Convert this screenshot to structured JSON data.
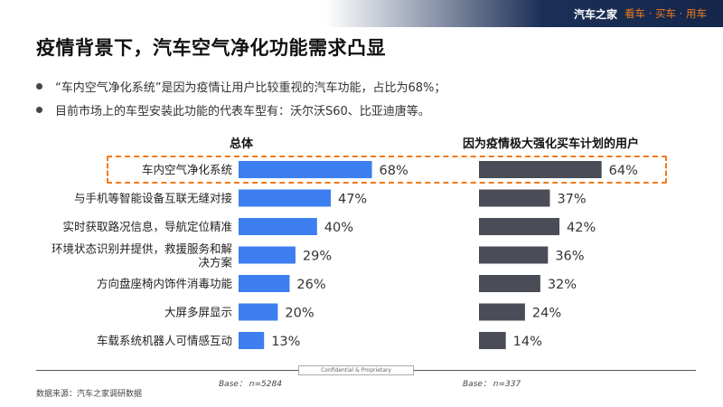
{
  "header": {
    "brand_name": "汽车之家",
    "slogan": "看车 · 买车 · 用车"
  },
  "title": "疫情背景下，汽车空气净化功能需求凸显",
  "bullets": [
    "“车内空气净化系统”是因为疫情让用户比较重视的汽车功能，占比为68%；",
    "目前市场上的车型安装此功能的代表车型有：沃尔沃S60、比亚迪唐等。"
  ],
  "colors": {
    "overall_bar": "#3d7ef0",
    "covid_bar": "#4a4d57",
    "highlight": "#f07a1a",
    "header_dark": "#1c2f57"
  },
  "chart_data": {
    "type": "bar",
    "orientation": "horizontal",
    "categories": [
      "车内空气净化系统",
      "与手机等智能设备互联无缝对接",
      "实时获取路况信息，导航定位精准",
      "环境状态识别并提供，救援服务和解决方案",
      "方向盘座椅内饰件消毒功能",
      "大屏多屏显示",
      "车载系统机器人可情感互动"
    ],
    "category_lines": [
      [
        "车内空气净化系统"
      ],
      [
        "与手机等智能设备互联无缝对接"
      ],
      [
        "实时获取路况信息，导航定位精准"
      ],
      [
        "环境状态识别并提供，救援服务和解",
        "决方案"
      ],
      [
        "方向盘座椅内饰件消毒功能"
      ],
      [
        "大屏多屏显示"
      ],
      [
        "车载系统机器人可情感互动"
      ]
    ],
    "series": [
      {
        "name": "总体",
        "values": [
          68,
          47,
          40,
          29,
          26,
          20,
          13
        ],
        "labels": [
          "68%",
          "47%",
          "40%",
          "29%",
          "26%",
          "20%",
          "13%"
        ],
        "base": "Base： n=5284"
      },
      {
        "name": "因为疫情极大强化买车计划的用户",
        "values": [
          64,
          37,
          42,
          36,
          32,
          24,
          14
        ],
        "labels": [
          "64%",
          "37%",
          "42%",
          "36%",
          "32%",
          "24%",
          "14%"
        ],
        "base": "Base： n=337"
      }
    ],
    "unit": "%",
    "xlim": [
      0,
      100
    ],
    "highlighted_category": "车内空气净化系统"
  },
  "footer": {
    "confidential": "Confidential & Proprietary",
    "source": "数据来源：汽车之家调研数据"
  }
}
